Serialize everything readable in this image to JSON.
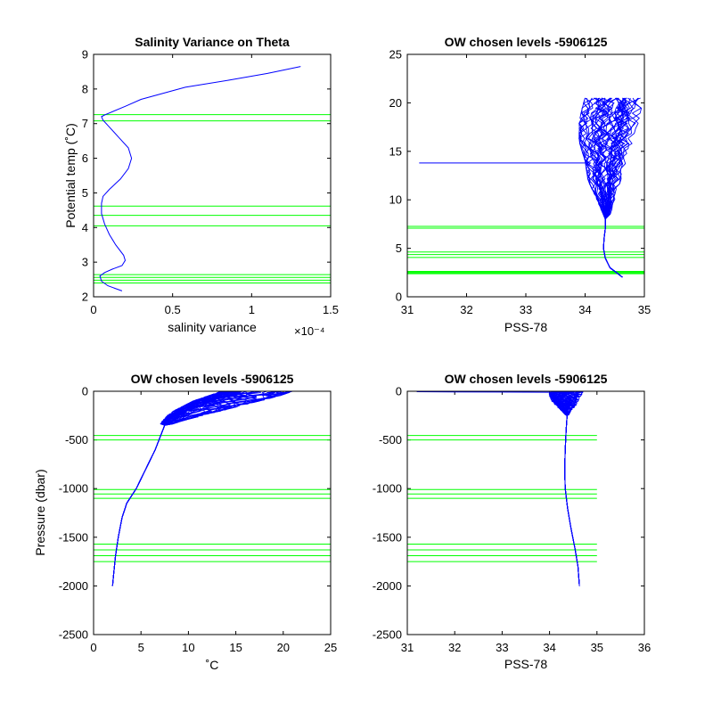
{
  "figure": {
    "colors": {
      "data_line": "#0000ff",
      "level_line": "#00ff00",
      "axes": "#000000",
      "background": "#ffffff"
    }
  },
  "chart_data": [
    {
      "type": "line",
      "title": "Salinity Variance on Theta",
      "xlabel": "salinity variance",
      "ylabel": "Potential temp (˚C)",
      "x_exponent_label": "×10⁻⁴",
      "xlim": [
        0,
        1.5
      ],
      "ylim": [
        2,
        9
      ],
      "xticks": [
        0,
        0.5,
        1,
        1.5
      ],
      "xtick_labels": [
        "0",
        "0.5",
        "1",
        "1.5"
      ],
      "yticks": [
        2,
        3,
        4,
        5,
        6,
        7,
        8,
        9
      ],
      "ytick_labels": [
        "2",
        "3",
        "4",
        "5",
        "6",
        "7",
        "8",
        "9"
      ],
      "grid": false,
      "series": [
        {
          "x": [
            0.18,
            0.09,
            0.05,
            0.04,
            0.07,
            0.12,
            0.18,
            0.2,
            0.19,
            0.14,
            0.1,
            0.07,
            0.05,
            0.05,
            0.06,
            0.1,
            0.17,
            0.22,
            0.24,
            0.22,
            0.16,
            0.1,
            0.06,
            0.05,
            0.07,
            0.2,
            0.3,
            0.58,
            0.85,
            1.1,
            1.31
          ],
          "y": [
            2.17,
            2.32,
            2.45,
            2.6,
            2.7,
            2.8,
            2.9,
            3.05,
            3.2,
            3.5,
            3.8,
            4.1,
            4.4,
            4.7,
            4.9,
            5.1,
            5.4,
            5.7,
            6.0,
            6.3,
            6.6,
            6.9,
            7.1,
            7.2,
            7.25,
            7.5,
            7.7,
            8.05,
            8.25,
            8.45,
            8.65
          ]
        }
      ],
      "levels": {
        "orientation": "horizontal",
        "values": [
          2.4,
          2.48,
          2.56,
          2.64,
          4.05,
          4.35,
          4.62,
          7.08,
          7.26
        ]
      }
    },
    {
      "type": "line",
      "title": "OW chosen levels -5906125",
      "xlabel": "PSS-78",
      "ylabel": "",
      "xlim": [
        31,
        35
      ],
      "ylim": [
        0,
        25
      ],
      "xticks": [
        31,
        32,
        33,
        34,
        35
      ],
      "xtick_labels": [
        "31",
        "32",
        "33",
        "34",
        "35"
      ],
      "yticks": [
        0,
        5,
        10,
        15,
        20,
        25
      ],
      "ytick_labels": [
        "0",
        "5",
        "10",
        "15",
        "20",
        "25"
      ],
      "grid": false,
      "bundle": {
        "count": 45,
        "core": {
          "x": [
            34.63,
            34.55,
            34.42,
            34.34,
            34.31,
            34.32,
            34.34,
            34.34,
            34.34
          ],
          "y": [
            2.0,
            2.4,
            3.0,
            4.0,
            5.0,
            6.0,
            7.0,
            7.5,
            8.0
          ]
        },
        "spread": {
          "y": [
            8.0,
            10.0,
            12.0,
            14.0,
            16.0,
            18.0,
            19.5,
            20.5
          ],
          "x_min": [
            34.34,
            34.2,
            34.05,
            34.0,
            33.9,
            33.9,
            33.95,
            34.0
          ],
          "x_max": [
            34.4,
            34.5,
            34.6,
            34.7,
            34.8,
            34.9,
            34.95,
            35.0
          ]
        }
      },
      "series": [
        {
          "x": [
            31.2,
            34.1
          ],
          "y": [
            13.8,
            13.8
          ]
        }
      ],
      "levels": {
        "orientation": "horizontal",
        "values": [
          2.38,
          2.46,
          2.54,
          2.62,
          4.05,
          4.35,
          4.62,
          7.08,
          7.26
        ]
      }
    },
    {
      "type": "line",
      "title": "OW chosen levels -5906125",
      "xlabel": "˚C",
      "ylabel": "Pressure (dbar)",
      "xlim": [
        0,
        25
      ],
      "ylim": [
        -2500,
        0
      ],
      "xticks": [
        0,
        5,
        10,
        15,
        20,
        25
      ],
      "xtick_labels": [
        "0",
        "5",
        "10",
        "15",
        "20",
        "25"
      ],
      "yticks": [
        -2500,
        -2000,
        -1500,
        -1000,
        -500,
        0
      ],
      "ytick_labels": [
        "-2500",
        "-2000",
        "-1500",
        "-1000",
        "-500",
        "0"
      ],
      "grid": false,
      "bundle": {
        "count": 45,
        "core": {
          "x": [
            2.0,
            2.1,
            2.3,
            2.6,
            3.0,
            3.5,
            4.5,
            5.5,
            6.5,
            7.1,
            7.5
          ],
          "y": [
            -2000,
            -1900,
            -1700,
            -1500,
            -1300,
            -1150,
            -1000,
            -800,
            -600,
            -450,
            -350
          ]
        },
        "spread": {
          "y": [
            -350,
            -300,
            -250,
            -200,
            -150,
            -100,
            -50,
            0
          ],
          "x_min": [
            7.0,
            7.3,
            7.8,
            8.5,
            9.5,
            10.5,
            12.0,
            13.5
          ],
          "x_max": [
            8.0,
            9.5,
            11.5,
            13.5,
            15.5,
            17.5,
            19.5,
            21.0
          ]
        }
      },
      "levels": {
        "orientation": "horizontal",
        "values": [
          -455,
          -500,
          -1010,
          -1055,
          -1100,
          -1570,
          -1630,
          -1690,
          -1750
        ]
      }
    },
    {
      "type": "line",
      "title": "OW chosen levels -5906125",
      "xlabel": "PSS-78",
      "ylabel": "",
      "xlim": [
        31,
        36
      ],
      "ylim": [
        -2500,
        0
      ],
      "xticks": [
        31,
        32,
        33,
        34,
        35,
        36
      ],
      "xtick_labels": [
        "31",
        "32",
        "33",
        "34",
        "35",
        "36"
      ],
      "yticks": [
        -2500,
        -2000,
        -1500,
        -1000,
        -500,
        0
      ],
      "ytick_labels": [
        "-2500",
        "-2000",
        "-1500",
        "-1000",
        "-500",
        "0"
      ],
      "grid": false,
      "bundle": {
        "count": 45,
        "core": {
          "x": [
            34.63,
            34.6,
            34.53,
            34.45,
            34.38,
            34.33,
            34.32,
            34.33,
            34.35,
            34.37
          ],
          "y": [
            -2000,
            -1800,
            -1600,
            -1400,
            -1200,
            -1000,
            -800,
            -600,
            -400,
            -250
          ]
        },
        "spread": {
          "y": [
            -250,
            -200,
            -150,
            -100,
            -50,
            -20,
            0
          ],
          "x_min": [
            34.35,
            34.25,
            34.15,
            34.05,
            34.0,
            34.0,
            34.1
          ],
          "x_max": [
            34.4,
            34.45,
            34.55,
            34.6,
            34.65,
            34.7,
            34.7
          ]
        }
      },
      "series": [
        {
          "x": [
            31.2,
            32.0,
            33.0,
            34.0,
            34.5
          ],
          "y": [
            -5,
            -7,
            -8,
            -10,
            -12
          ]
        }
      ],
      "levels": {
        "orientation": "horizontal",
        "x_range": [
          31,
          35
        ],
        "values": [
          -455,
          -500,
          -1010,
          -1055,
          -1100,
          -1570,
          -1630,
          -1690,
          -1750
        ]
      }
    }
  ]
}
